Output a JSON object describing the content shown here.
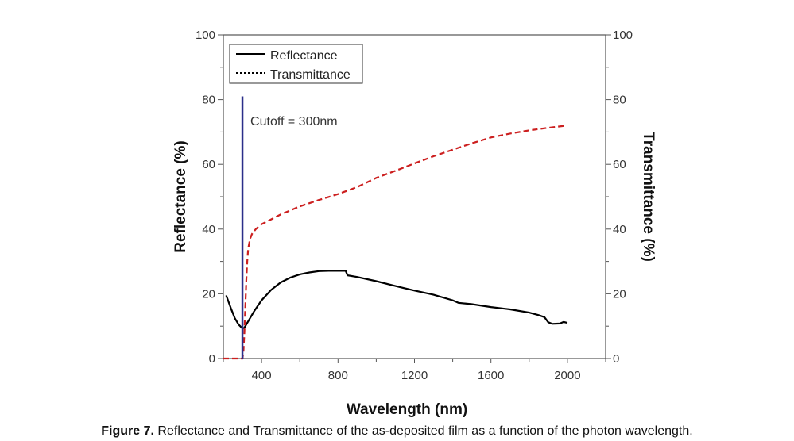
{
  "chart_data": {
    "type": "line",
    "xlabel": "Wavelength (nm)",
    "ylabel": "Reflectance (%)",
    "ylabel_right": "Transmittance (%)",
    "xlim": [
      200,
      2200
    ],
    "ylim": [
      0,
      100
    ],
    "xticks": [
      400,
      800,
      1200,
      1600,
      2000
    ],
    "yticks": [
      0,
      20,
      40,
      60,
      80,
      100
    ],
    "grid": false,
    "legend_position": "top-left",
    "series": [
      {
        "name": "Reflectance",
        "color": "#000000",
        "style": "solid",
        "x": [
          215,
          240,
          260,
          280,
          300,
          310,
          330,
          360,
          400,
          450,
          500,
          550,
          600,
          650,
          700,
          750,
          800,
          840,
          850,
          900,
          1000,
          1100,
          1200,
          1300,
          1400,
          1430,
          1500,
          1600,
          1700,
          1800,
          1850,
          1880,
          1900,
          1920,
          1960,
          1980,
          2000
        ],
        "y": [
          19.5,
          15.5,
          12.5,
          10.5,
          9.3,
          9.5,
          11.5,
          14.5,
          18,
          21.2,
          23.5,
          25,
          26,
          26.6,
          27,
          27.1,
          27.1,
          27.1,
          25.7,
          25.2,
          23.9,
          22.4,
          21,
          19.7,
          18,
          17.2,
          16.8,
          15.9,
          15.2,
          14.2,
          13.4,
          12.8,
          11.2,
          10.7,
          10.8,
          11.3,
          11
        ]
      },
      {
        "name": "Transmittance",
        "color": "#cc1f1f",
        "style": "dashed",
        "x": [
          200,
          300,
          305,
          310,
          315,
          320,
          325,
          330,
          340,
          350,
          370,
          400,
          450,
          500,
          600,
          700,
          800,
          900,
          1000,
          1100,
          1200,
          1300,
          1400,
          1500,
          1600,
          1700,
          1800,
          1900,
          2000
        ],
        "y": [
          0,
          0,
          2,
          8,
          16,
          24,
          30,
          34,
          37,
          38.5,
          40,
          41.5,
          43,
          44.5,
          47,
          49,
          50.8,
          53,
          55.8,
          58,
          60.3,
          62.5,
          64.5,
          66.5,
          68.3,
          69.5,
          70.5,
          71.3,
          72
        ]
      }
    ],
    "annotations": [
      {
        "text": "Cutoff = 300nm",
        "x": 300,
        "y_range": [
          0,
          81
        ],
        "color": "#2b2f8a"
      }
    ]
  },
  "caption": {
    "label": "Figure 7.",
    "text": " Reflectance and Transmittance of the as-deposited film as a function of the photon wavelength."
  }
}
